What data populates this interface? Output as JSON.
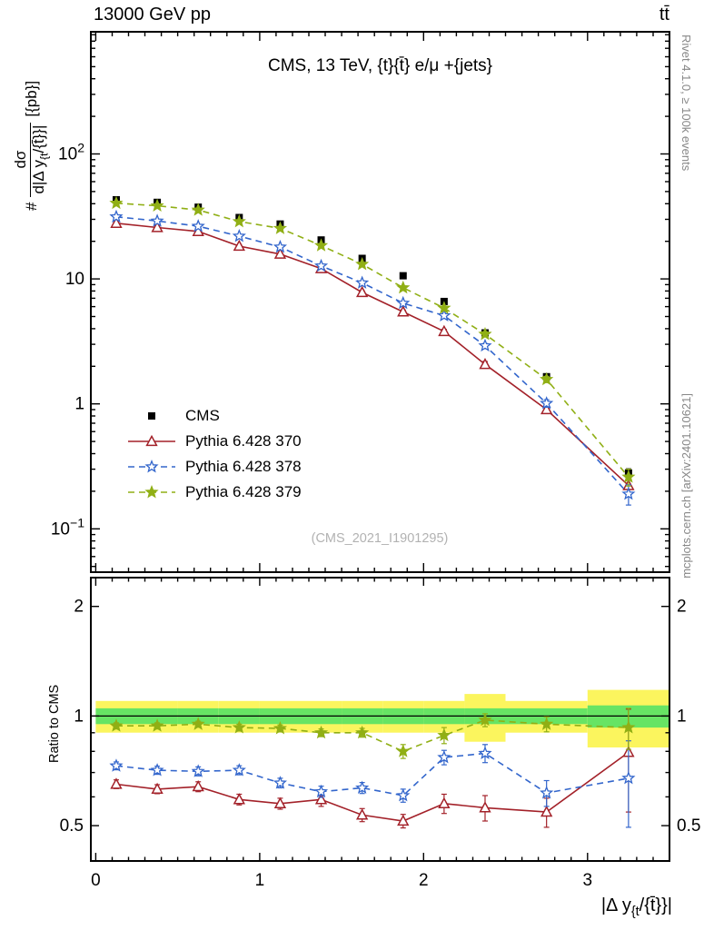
{
  "header": {
    "left": "13000 GeV pp",
    "right": "tt̄"
  },
  "chart_data": {
    "type": "line",
    "title": "CMS, 13 TeV, {t}{t̄} e/μ +{jets}",
    "watermark": "(CMS_2021_I1901295)",
    "side_notes": {
      "top": "Rivet 4.1.0, ≥ 100k events",
      "bottom": "mcplots.cern.ch [arXiv:2401.10621]"
    },
    "axes": {
      "x": {
        "label_pre": "|Δ y",
        "label_sub": "{t",
        "label_post": "/{t̄}}|",
        "range": [
          -0.03,
          3.5
        ],
        "minor_step": 0.1,
        "major_ticks": [
          {
            "v": 0,
            "label": "0"
          },
          {
            "v": 1,
            "label": "1"
          },
          {
            "v": 2,
            "label": "2"
          },
          {
            "v": 3,
            "label": "3"
          }
        ]
      },
      "y_main": {
        "label_prefix": "#",
        "label_num": "dσ",
        "label_den_pre": "d|Δ y",
        "label_den_sub": "{t",
        "label_den_post": "/{t̄}}|",
        "label_suffix": "[{pb}]",
        "scale": "log",
        "range": [
          0.045,
          950
        ],
        "major_ticks": [
          {
            "v": 0.1,
            "label": "10^{-1}"
          },
          {
            "v": 1,
            "label": "1"
          },
          {
            "v": 10,
            "label": "10"
          },
          {
            "v": 100,
            "label": "10^{2}"
          }
        ]
      },
      "y_ratio": {
        "label": "Ratio to CMS",
        "scale": "log",
        "range": [
          0.4,
          2.4
        ],
        "major_ticks": [
          {
            "v": 0.5,
            "label": "0.5"
          },
          {
            "v": 1,
            "label": "1"
          },
          {
            "v": 2,
            "label": "2"
          }
        ]
      }
    },
    "bins": {
      "edges": [
        0,
        0.25,
        0.5,
        0.75,
        1.0,
        1.25,
        1.5,
        1.75,
        2.0,
        2.25,
        2.5,
        3.0,
        3.5
      ],
      "centers": [
        0.125,
        0.375,
        0.625,
        0.875,
        1.125,
        1.375,
        1.625,
        1.875,
        2.125,
        2.375,
        2.75,
        3.25
      ]
    },
    "series": [
      {
        "label": "CMS",
        "color": "#000000",
        "marker": "square",
        "line": "none",
        "values": [
          43,
          41,
          37.5,
          31,
          27.5,
          20.5,
          14.6,
          10.6,
          6.6,
          3.7,
          1.65,
          0.28
        ],
        "errors": [
          2.2,
          2.0,
          1.9,
          1.6,
          1.4,
          1.0,
          0.75,
          0.55,
          0.34,
          0.19,
          0.09,
          0.022
        ]
      },
      {
        "label": "Pythia 6.428 370",
        "color": "#a32129",
        "marker": "triangle-open",
        "line": "solid",
        "values": [
          27.9,
          25.8,
          24.0,
          18.3,
          15.8,
          12.1,
          7.8,
          5.45,
          3.8,
          2.07,
          0.9,
          0.222
        ],
        "errors": [
          0.5,
          0.5,
          0.45,
          0.4,
          0.35,
          0.3,
          0.22,
          0.18,
          0.15,
          0.11,
          0.06,
          0.03
        ],
        "ratio": [
          0.65,
          0.63,
          0.64,
          0.59,
          0.575,
          0.59,
          0.535,
          0.515,
          0.575,
          0.56,
          0.545,
          0.795
        ],
        "ratio_errors": [
          0.018,
          0.018,
          0.02,
          0.02,
          0.02,
          0.025,
          0.022,
          0.022,
          0.035,
          0.045,
          0.05,
          0.25
        ]
      },
      {
        "label": "Pythia 6.428 378",
        "color": "#3366cc",
        "marker": "star-open",
        "line": "dashed",
        "values": [
          31.4,
          29.1,
          26.4,
          22.0,
          18.0,
          12.7,
          9.3,
          6.4,
          5.08,
          2.92,
          1.01,
          0.19
        ],
        "errors": [
          0.5,
          0.5,
          0.45,
          0.4,
          0.35,
          0.3,
          0.25,
          0.2,
          0.17,
          0.12,
          0.07,
          0.035
        ],
        "ratio": [
          0.73,
          0.71,
          0.705,
          0.71,
          0.655,
          0.62,
          0.635,
          0.605,
          0.77,
          0.79,
          0.615,
          0.675
        ],
        "ratio_errors": [
          0.018,
          0.018,
          0.02,
          0.02,
          0.02,
          0.022,
          0.022,
          0.025,
          0.035,
          0.045,
          0.05,
          0.18
        ]
      },
      {
        "label": "Pythia 6.428 379",
        "color": "#90af15",
        "marker": "star",
        "line": "dashed",
        "values": [
          40.4,
          38.5,
          35.6,
          28.8,
          25.4,
          18.5,
          13.1,
          8.5,
          5.84,
          3.61,
          1.57,
          0.26
        ],
        "errors": [
          0.6,
          0.6,
          0.55,
          0.5,
          0.45,
          0.38,
          0.3,
          0.27,
          0.22,
          0.16,
          0.09,
          0.04
        ],
        "ratio": [
          0.94,
          0.94,
          0.95,
          0.93,
          0.925,
          0.9,
          0.9,
          0.8,
          0.885,
          0.975,
          0.95,
          0.93
        ],
        "ratio_errors": [
          0.018,
          0.018,
          0.018,
          0.02,
          0.02,
          0.022,
          0.025,
          0.035,
          0.045,
          0.04,
          0.045,
          0.12
        ]
      }
    ],
    "uncertainty_bands": {
      "yellow": {
        "color": "#fbf55e",
        "lo": [
          0.9,
          0.9,
          0.9,
          0.9,
          0.9,
          0.9,
          0.9,
          0.9,
          0.9,
          0.85,
          0.9,
          0.82
        ],
        "hi": [
          1.1,
          1.1,
          1.1,
          1.1,
          1.1,
          1.1,
          1.1,
          1.1,
          1.1,
          1.15,
          1.1,
          1.18
        ]
      },
      "green": {
        "color": "#67e464",
        "lo": [
          0.95,
          0.95,
          0.95,
          0.95,
          0.95,
          0.95,
          0.95,
          0.95,
          0.95,
          0.95,
          0.95,
          0.93
        ],
        "hi": [
          1.05,
          1.05,
          1.05,
          1.05,
          1.05,
          1.05,
          1.05,
          1.05,
          1.05,
          1.05,
          1.05,
          1.07
        ]
      }
    }
  }
}
